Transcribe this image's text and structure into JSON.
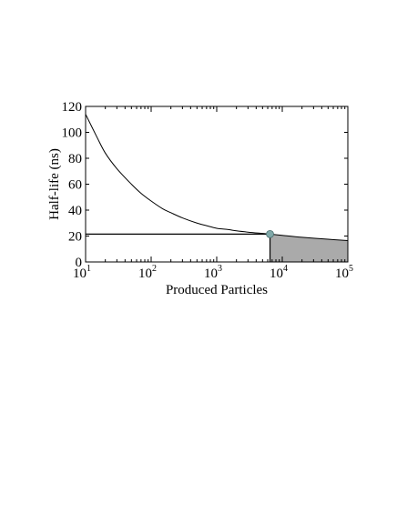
{
  "chart_data": {
    "type": "line",
    "title": "",
    "xlabel": "Produced Particles",
    "ylabel": "Half-life (ns)",
    "x_scale": "log",
    "xlim": [
      10,
      100000
    ],
    "ylim": [
      0,
      120
    ],
    "grid": false,
    "x_tick_labels": [
      {
        "base": "10",
        "exp": "1",
        "value": 10
      },
      {
        "base": "10",
        "exp": "2",
        "value": 100
      },
      {
        "base": "10",
        "exp": "3",
        "value": 1000
      },
      {
        "base": "10",
        "exp": "4",
        "value": 10000
      },
      {
        "base": "10",
        "exp": "5",
        "value": 100000
      }
    ],
    "y_ticks": [
      0,
      20,
      40,
      60,
      80,
      100,
      120
    ],
    "series": [
      {
        "x": [
          10,
          15,
          20,
          30,
          50,
          70,
          100,
          150,
          200,
          300,
          500,
          700,
          1000,
          1500,
          2000,
          3000,
          5000,
          6500,
          10000,
          20000,
          50000,
          100000
        ],
        "y": [
          114,
          96,
          84,
          72,
          60,
          53,
          47,
          41,
          38,
          34,
          30,
          28,
          26,
          25,
          24,
          23,
          22,
          21.5,
          20.5,
          19,
          17.5,
          16.5
        ]
      }
    ],
    "highlight_point": {
      "x": 6500,
      "y": 21.5
    },
    "shaded_region": {
      "x_from": 6500,
      "x_to": 100000,
      "fill": "#aaaaaa"
    },
    "colors": {
      "line": "#000000",
      "marker": "#7fa8a8",
      "shade": "#aaaaaa"
    }
  }
}
